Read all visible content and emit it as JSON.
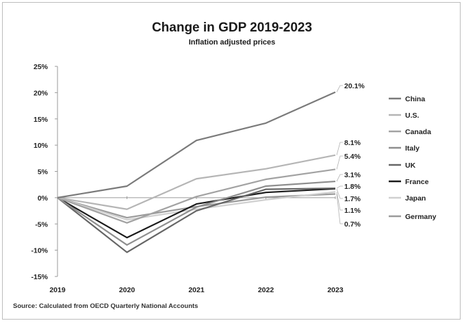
{
  "chart_data": {
    "type": "line",
    "title": "Change in GDP 2019-2023",
    "subtitle": "Inflation adjusted prices",
    "source": "Source: Calculated from OECD Quarterly National Accounts",
    "x": [
      "2019",
      "2020",
      "2021",
      "2022",
      "2023"
    ],
    "ylim": [
      -15,
      25
    ],
    "y_ticks": [
      "25%",
      "20%",
      "15%",
      "10%",
      "5%",
      "0%",
      "-5%",
      "-10%",
      "-15%"
    ],
    "grid": false,
    "legend_position": "right",
    "series": [
      {
        "name": "China",
        "color": "#7a7a7a",
        "values": [
          0,
          2.2,
          10.9,
          14.2,
          20.1
        ],
        "end_label": "20.1%"
      },
      {
        "name": "U.S.",
        "color": "#b5b5b5",
        "values": [
          0,
          -2.2,
          3.6,
          5.5,
          8.1
        ],
        "end_label": "8.1%"
      },
      {
        "name": "Canada",
        "color": "#a2a2a2",
        "values": [
          0,
          -4.8,
          0.2,
          3.5,
          5.4
        ],
        "end_label": "5.4%"
      },
      {
        "name": "Italy",
        "color": "#8e8e8e",
        "values": [
          0,
          -9.0,
          -1.8,
          2.2,
          3.1
        ],
        "end_label": "3.1%"
      },
      {
        "name": "UK",
        "color": "#666666",
        "values": [
          0,
          -10.4,
          -2.5,
          1.6,
          1.8
        ],
        "end_label": "1.8%"
      },
      {
        "name": "France",
        "color": "#1a1a1a",
        "values": [
          0,
          -7.6,
          -1.2,
          1.0,
          1.7
        ],
        "end_label": "1.7%"
      },
      {
        "name": "Japan",
        "color": "#d0d0d0",
        "values": [
          0,
          -4.2,
          -2.2,
          -0.4,
          1.1
        ],
        "end_label": "1.1%"
      },
      {
        "name": "Germany",
        "color": "#9a9a9a",
        "values": [
          0,
          -3.8,
          -1.7,
          0.1,
          0.7
        ],
        "end_label": "0.7%"
      }
    ]
  }
}
